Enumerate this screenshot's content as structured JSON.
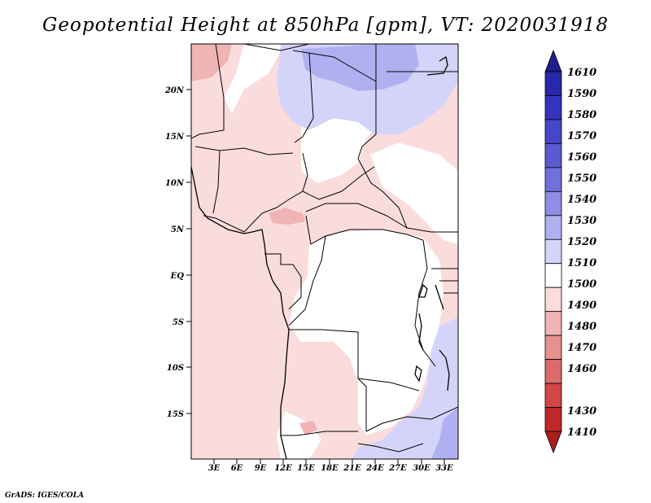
{
  "title": "Geopotential Height at 850hPa [gpm], VT: 2020031918",
  "footer": "GrADS: IGES/COLA",
  "map": {
    "y_axis_labels": [
      "20N",
      "15N",
      "10N",
      "5N",
      "EQ",
      "5S",
      "10S",
      "15S"
    ],
    "x_axis_labels": [
      "3E",
      "6E",
      "9E",
      "12E",
      "15E",
      "18E",
      "21E",
      "24E",
      "27E",
      "30E",
      "33E"
    ]
  },
  "colorbar": {
    "levels": [
      "1610",
      "1590",
      "1580",
      "1570",
      "1560",
      "1550",
      "1540",
      "1530",
      "1520",
      "1510",
      "1500",
      "1490",
      "1480",
      "1470",
      "1460",
      "1430",
      "1410"
    ],
    "colors_top_to_bottom": [
      "#1e1e8c",
      "#2828aa",
      "#3434be",
      "#4646c8",
      "#5a5ad2",
      "#7070dc",
      "#8e8ee6",
      "#b0b0f0",
      "#d4d4fa",
      "#ffffff",
      "#fadcdc",
      "#f0b4b4",
      "#e69090",
      "#dc6a6a",
      "#d24646",
      "#be2828",
      "#aa1e1e"
    ]
  },
  "colors": {
    "light_blue": "#d4d4fa",
    "mid_blue": "#b0b0f0",
    "light_pink": "#fadcdc",
    "mid_pink": "#f0b4b4",
    "land": "#ffffff",
    "border": "#000000"
  }
}
